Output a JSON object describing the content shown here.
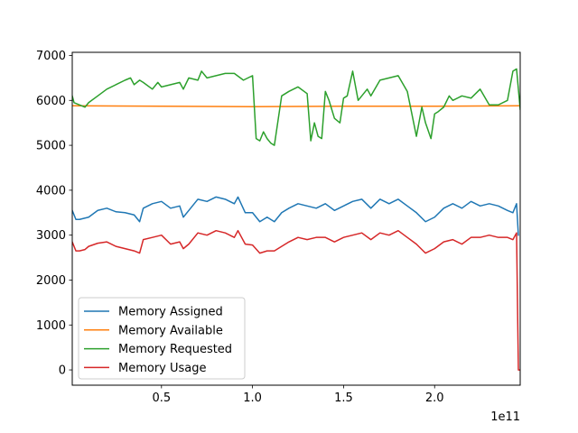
{
  "chart_data": {
    "type": "line",
    "title": "",
    "xlabel": "",
    "ylabel": "",
    "x_offset_label": "1e11",
    "xlim": [
      0.01,
      2.47
    ],
    "ylim": [
      -340,
      7070
    ],
    "x_ticks": [
      0.5,
      1.0,
      1.5,
      2.0
    ],
    "x_tick_labels": [
      "0.5",
      "1.0",
      "1.5",
      "2.0"
    ],
    "y_ticks": [
      0,
      1000,
      2000,
      3000,
      4000,
      5000,
      6000,
      7000
    ],
    "y_tick_labels": [
      "0",
      "1000",
      "2000",
      "3000",
      "4000",
      "5000",
      "6000",
      "7000"
    ],
    "grid": false,
    "legend_position": "lower-left",
    "series": [
      {
        "name": "Memory Assigned",
        "color": "#1f77b4",
        "x": [
          0.01,
          0.03,
          0.05,
          0.1,
          0.15,
          0.2,
          0.25,
          0.3,
          0.35,
          0.38,
          0.4,
          0.45,
          0.5,
          0.55,
          0.6,
          0.62,
          0.65,
          0.7,
          0.75,
          0.8,
          0.85,
          0.9,
          0.92,
          0.96,
          1.0,
          1.04,
          1.08,
          1.12,
          1.16,
          1.2,
          1.25,
          1.3,
          1.35,
          1.4,
          1.45,
          1.5,
          1.55,
          1.6,
          1.65,
          1.7,
          1.75,
          1.8,
          1.85,
          1.9,
          1.95,
          2.0,
          2.05,
          2.1,
          2.15,
          2.2,
          2.25,
          2.3,
          2.35,
          2.4,
          2.43,
          2.45,
          2.46
        ],
        "y": [
          3550,
          3350,
          3350,
          3400,
          3550,
          3600,
          3520,
          3500,
          3450,
          3300,
          3600,
          3700,
          3750,
          3600,
          3650,
          3400,
          3550,
          3800,
          3750,
          3850,
          3800,
          3700,
          3850,
          3500,
          3500,
          3300,
          3400,
          3300,
          3500,
          3600,
          3700,
          3650,
          3600,
          3700,
          3550,
          3650,
          3750,
          3800,
          3600,
          3800,
          3700,
          3800,
          3650,
          3500,
          3300,
          3400,
          3600,
          3700,
          3600,
          3750,
          3650,
          3700,
          3650,
          3550,
          3500,
          3700,
          3000
        ]
      },
      {
        "name": "Memory Available",
        "color": "#ff7f0e",
        "x": [
          0.01,
          0.5,
          1.0,
          1.5,
          2.0,
          2.47
        ],
        "y": [
          5880,
          5870,
          5860,
          5870,
          5870,
          5880
        ]
      },
      {
        "name": "Memory Requested",
        "color": "#2ca02c",
        "x": [
          0.01,
          0.02,
          0.05,
          0.08,
          0.1,
          0.15,
          0.2,
          0.25,
          0.3,
          0.33,
          0.35,
          0.38,
          0.4,
          0.45,
          0.48,
          0.5,
          0.55,
          0.6,
          0.62,
          0.65,
          0.7,
          0.72,
          0.75,
          0.8,
          0.85,
          0.9,
          0.95,
          1.0,
          1.02,
          1.04,
          1.06,
          1.08,
          1.1,
          1.12,
          1.14,
          1.16,
          1.2,
          1.25,
          1.3,
          1.32,
          1.34,
          1.36,
          1.38,
          1.4,
          1.42,
          1.45,
          1.48,
          1.5,
          1.52,
          1.55,
          1.58,
          1.6,
          1.63,
          1.65,
          1.7,
          1.75,
          1.8,
          1.85,
          1.9,
          1.93,
          1.95,
          1.98,
          2.0,
          2.02,
          2.05,
          2.08,
          2.1,
          2.15,
          2.2,
          2.25,
          2.3,
          2.35,
          2.4,
          2.43,
          2.45,
          2.47
        ],
        "y": [
          6100,
          5950,
          5900,
          5850,
          5950,
          6100,
          6250,
          6350,
          6450,
          6500,
          6350,
          6450,
          6400,
          6250,
          6400,
          6300,
          6350,
          6400,
          6250,
          6500,
          6450,
          6650,
          6500,
          6550,
          6600,
          6600,
          6450,
          6550,
          5150,
          5100,
          5300,
          5150,
          5050,
          5000,
          5550,
          6100,
          6200,
          6300,
          6150,
          5100,
          5500,
          5200,
          5150,
          6200,
          6000,
          5600,
          5500,
          6050,
          6100,
          6650,
          6000,
          6100,
          6250,
          6100,
          6450,
          6500,
          6550,
          6200,
          5200,
          5850,
          5500,
          5150,
          5700,
          5750,
          5850,
          6100,
          6000,
          6100,
          6050,
          6250,
          5900,
          5900,
          6000,
          6650,
          6700,
          5800
        ]
      },
      {
        "name": "Memory Usage",
        "color": "#d62728",
        "x": [
          0.01,
          0.03,
          0.05,
          0.08,
          0.1,
          0.15,
          0.2,
          0.25,
          0.3,
          0.35,
          0.38,
          0.4,
          0.45,
          0.5,
          0.55,
          0.6,
          0.62,
          0.65,
          0.7,
          0.75,
          0.8,
          0.85,
          0.9,
          0.92,
          0.96,
          1.0,
          1.04,
          1.08,
          1.12,
          1.16,
          1.2,
          1.25,
          1.3,
          1.35,
          1.4,
          1.45,
          1.5,
          1.55,
          1.6,
          1.65,
          1.7,
          1.75,
          1.8,
          1.85,
          1.9,
          1.95,
          2.0,
          2.05,
          2.1,
          2.15,
          2.2,
          2.25,
          2.3,
          2.35,
          2.4,
          2.43,
          2.45,
          2.46,
          2.47
        ],
        "y": [
          2850,
          2650,
          2650,
          2680,
          2750,
          2820,
          2850,
          2750,
          2700,
          2650,
          2600,
          2900,
          2950,
          3000,
          2800,
          2850,
          2700,
          2800,
          3050,
          3000,
          3100,
          3050,
          2950,
          3100,
          2800,
          2780,
          2600,
          2650,
          2650,
          2750,
          2850,
          2950,
          2900,
          2950,
          2950,
          2850,
          2950,
          3000,
          3050,
          2900,
          3050,
          3000,
          3100,
          2950,
          2800,
          2600,
          2700,
          2850,
          2900,
          2800,
          2950,
          2950,
          3000,
          2950,
          2950,
          2900,
          3050,
          0,
          0
        ]
      }
    ]
  }
}
